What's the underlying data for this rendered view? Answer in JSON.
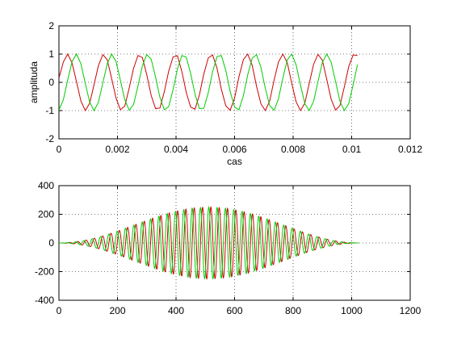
{
  "chart_data": [
    {
      "type": "line",
      "title": "",
      "xlabel": "cas",
      "ylabel": "amplituda",
      "xlim": [
        0,
        0.012
      ],
      "ylim": [
        -2,
        2
      ],
      "xticks": [
        0,
        0.002,
        0.004,
        0.006,
        0.008,
        0.01,
        0.012
      ],
      "xtick_labels": [
        "0",
        "0.002",
        "0.004",
        "0.006",
        "0.008",
        "0.01",
        "0.012"
      ],
      "yticks": [
        -2,
        -1,
        0,
        1,
        2
      ],
      "ytick_labels": [
        "-2",
        "-1",
        "0",
        "1",
        "2"
      ],
      "grid": true,
      "legend": "none",
      "series": [
        {
          "color": "#cc0000",
          "description_values": "noisy sine, amplitude ~1, period ~0.00114, t from 0 to 0.0102",
          "x": [
            0.0,
            0.00015,
            0.0003,
            0.00045,
            0.0006,
            0.00075,
            0.0009,
            0.00105,
            0.0012,
            0.00135,
            0.0015,
            0.00165,
            0.0018,
            0.00195,
            0.0021,
            0.00225,
            0.0024,
            0.00255,
            0.0027,
            0.00285,
            0.003,
            0.00315,
            0.0033,
            0.00345,
            0.0036,
            0.00375,
            0.0039,
            0.00405,
            0.0042,
            0.00435,
            0.0045,
            0.00465,
            0.0048,
            0.00495,
            0.0051,
            0.00525,
            0.0054,
            0.00555,
            0.0057,
            0.00585,
            0.006,
            0.00615,
            0.0063,
            0.00645,
            0.0066,
            0.00675,
            0.0069,
            0.00705,
            0.0072,
            0.00735,
            0.0075,
            0.00765,
            0.0078,
            0.00795,
            0.0081,
            0.00825,
            0.0084,
            0.00855,
            0.0087,
            0.00885,
            0.009,
            0.00915,
            0.0093,
            0.00945,
            0.0096,
            0.00975,
            0.0099,
            0.01005,
            0.0102
          ],
          "y": [
            0.15,
            0.72,
            1.0,
            0.68,
            0.02,
            -0.66,
            -1.0,
            -0.74,
            -0.08,
            0.6,
            0.98,
            0.8,
            0.14,
            -0.56,
            -0.97,
            -0.84,
            -0.2,
            0.5,
            0.95,
            0.88,
            0.27,
            -0.46,
            -0.93,
            -0.91,
            -0.33,
            0.4,
            0.9,
            0.94,
            0.38,
            -0.36,
            -0.88,
            -0.95,
            -0.44,
            0.3,
            0.86,
            0.97,
            0.5,
            -0.25,
            -0.83,
            -0.99,
            -0.56,
            0.2,
            0.8,
            1.0,
            0.61,
            -0.14,
            -0.76,
            -1.0,
            -0.66,
            0.08,
            0.72,
            1.0,
            0.7,
            -0.02,
            -0.68,
            -1.0,
            -0.74,
            -0.04,
            0.64,
            0.99,
            0.78,
            0.1,
            -0.6,
            -0.98,
            -0.82,
            -0.16,
            0.56,
            0.97,
            0.95
          ]
        },
        {
          "color": "#00cc00",
          "description_values": "smooth sine, amplitude ~1, period ~0.00114, phase-lagged relative to red",
          "x": [
            0.0,
            0.00015,
            0.0003,
            0.00045,
            0.0006,
            0.00075,
            0.0009,
            0.00105,
            0.0012,
            0.00135,
            0.0015,
            0.00165,
            0.0018,
            0.00195,
            0.0021,
            0.00225,
            0.0024,
            0.00255,
            0.0027,
            0.00285,
            0.003,
            0.00315,
            0.0033,
            0.00345,
            0.0036,
            0.00375,
            0.0039,
            0.00405,
            0.0042,
            0.00435,
            0.0045,
            0.00465,
            0.0048,
            0.00495,
            0.0051,
            0.00525,
            0.0054,
            0.00555,
            0.0057,
            0.00585,
            0.006,
            0.00615,
            0.0063,
            0.00645,
            0.0066,
            0.00675,
            0.0069,
            0.00705,
            0.0072,
            0.00735,
            0.0075,
            0.00765,
            0.0078,
            0.00795,
            0.0081,
            0.00825,
            0.0084,
            0.00855,
            0.0087,
            0.00885,
            0.009,
            0.00915,
            0.0093,
            0.00945,
            0.0096,
            0.00975,
            0.0099,
            0.01005,
            0.0102
          ],
          "y": [
            -0.98,
            -0.62,
            0.09,
            0.74,
            1.0,
            0.66,
            -0.04,
            -0.7,
            -1.0,
            -0.7,
            -0.02,
            0.66,
            1.0,
            0.74,
            0.07,
            -0.62,
            -0.99,
            -0.78,
            -0.13,
            0.58,
            0.98,
            0.82,
            0.19,
            -0.53,
            -0.97,
            -0.86,
            -0.25,
            0.48,
            0.95,
            0.89,
            0.31,
            -0.43,
            -0.93,
            -0.92,
            -0.37,
            0.38,
            0.91,
            0.95,
            0.42,
            -0.32,
            -0.88,
            -0.97,
            -0.48,
            0.27,
            0.85,
            0.98,
            0.53,
            -0.21,
            -0.82,
            -0.99,
            -0.58,
            0.15,
            0.79,
            1.0,
            0.63,
            -0.09,
            -0.75,
            -1.0,
            -0.67,
            0.03,
            0.71,
            1.0,
            0.71,
            0.03,
            -0.67,
            -1.0,
            -0.75,
            -0.09,
            0.63
          ]
        }
      ]
    },
    {
      "type": "line",
      "title": "",
      "xlabel": "",
      "ylabel": "",
      "xlim": [
        0,
        1200
      ],
      "ylim": [
        -400,
        400
      ],
      "xticks": [
        0,
        200,
        400,
        600,
        800,
        1000,
        1200
      ],
      "xtick_labels": [
        "0",
        "200",
        "400",
        "600",
        "800",
        "1000",
        "1200"
      ],
      "yticks": [
        -400,
        -200,
        0,
        200,
        400
      ],
      "ytick_labels": [
        "-400",
        "-200",
        "0",
        "200",
        "400"
      ],
      "grid": true,
      "legend": "none",
      "envelope": {
        "center": 512,
        "half_width": 512,
        "peak": 250
      },
      "series": [
        {
          "color": "#cc0000",
          "description_values": "windowed oscillation, ~36 cycles over 0..1024, envelope peak ~250 at x=512",
          "x_range": [
            0,
            1024
          ],
          "cycles": 36,
          "phase": 0
        },
        {
          "color": "#00cc00",
          "description_values": "windowed oscillation in quadrature with red, same envelope",
          "x_range": [
            0,
            1024
          ],
          "cycles": 36,
          "phase": 1.5708
        }
      ]
    }
  ]
}
